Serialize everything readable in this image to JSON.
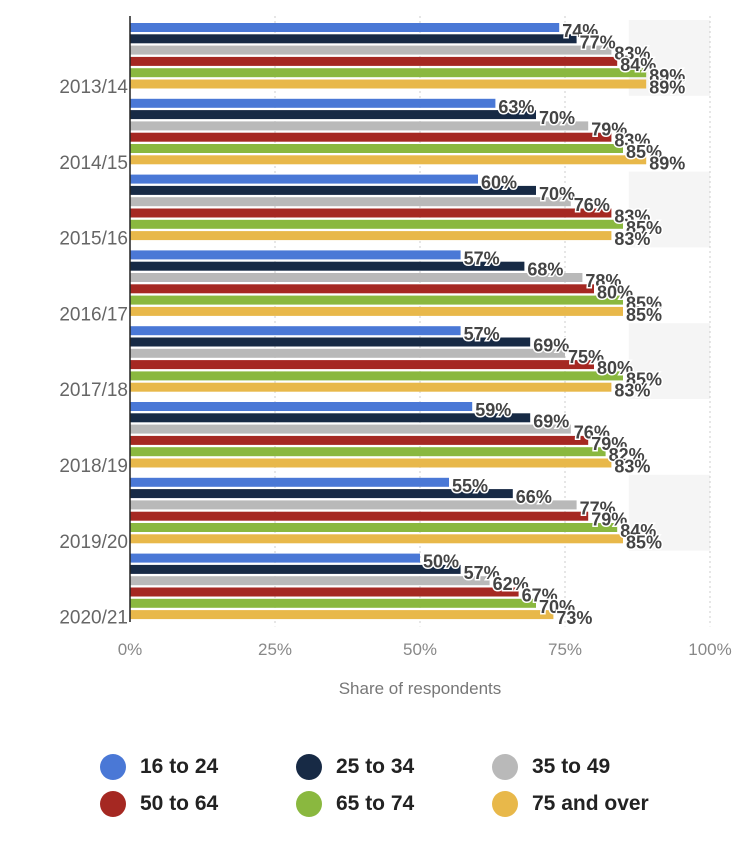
{
  "chart_data": {
    "type": "bar",
    "orientation": "horizontal",
    "title": "",
    "xlabel": "Share of respondents",
    "ylabel": "",
    "xlim": [
      0,
      100
    ],
    "x_ticks": [
      "0%",
      "25%",
      "50%",
      "75%",
      "100%"
    ],
    "categories": [
      "2013/14",
      "2014/15",
      "2015/16",
      "2016/17",
      "2017/18",
      "2018/19",
      "2019/20",
      "2020/21"
    ],
    "series": [
      {
        "name": "16 to 24",
        "color": "#4a78d6",
        "values": [
          74,
          63,
          60,
          57,
          57,
          59,
          55,
          50
        ]
      },
      {
        "name": "25 to 34",
        "color": "#172a45",
        "values": [
          77,
          70,
          70,
          68,
          69,
          69,
          66,
          57
        ]
      },
      {
        "name": "35 to 49",
        "color": "#b9b9b9",
        "values": [
          83,
          79,
          76,
          78,
          75,
          76,
          77,
          62
        ]
      },
      {
        "name": "50 to 64",
        "color": "#a52822",
        "values": [
          84,
          83,
          83,
          80,
          80,
          79,
          79,
          67
        ]
      },
      {
        "name": "65 to 74",
        "color": "#8ab83f",
        "values": [
          89,
          85,
          85,
          85,
          85,
          82,
          84,
          70
        ]
      },
      {
        "name": "75 and over",
        "color": "#e8b84a",
        "values": [
          89,
          89,
          83,
          85,
          83,
          83,
          85,
          73
        ]
      }
    ],
    "value_suffix": "%",
    "grid": true,
    "legend": "bottom"
  }
}
